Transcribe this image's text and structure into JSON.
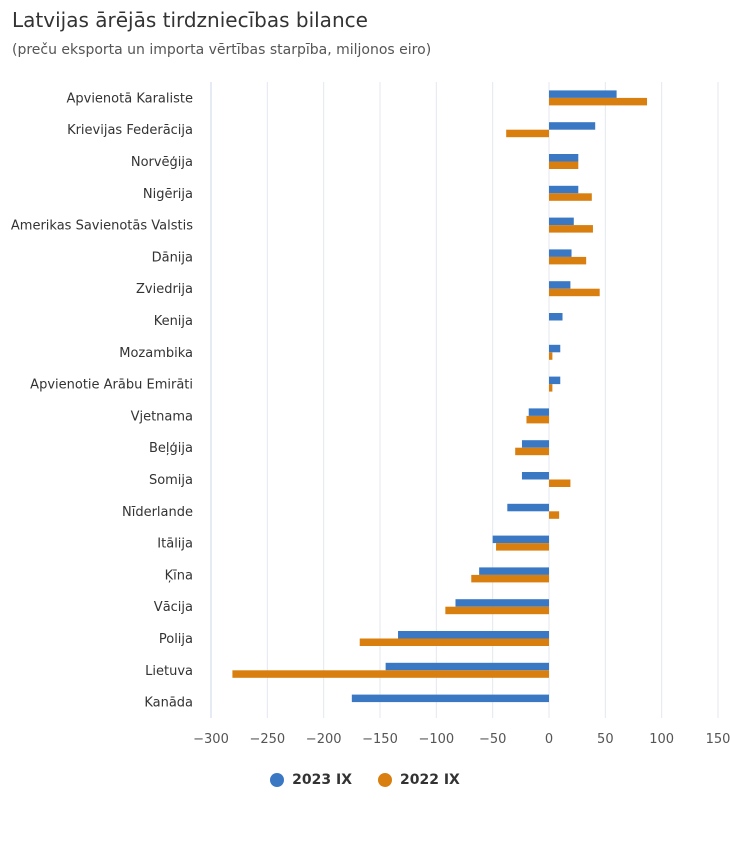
{
  "chart_data": {
    "type": "bar",
    "orientation": "horizontal",
    "title": "Latvijas ārējās tirdzniecības bilance",
    "subtitle": "(preču eksporta un importa vērtības starpība, miljonos eiro)",
    "categories": [
      "Apvienotā Karaliste",
      "Krievijas Federācija",
      "Norvēģija",
      "Nigērija",
      "Amerikas Savienotās Valstis",
      "Dānija",
      "Zviedrija",
      "Kenija",
      "Mozambika",
      "Apvienotie Arābu Emirāti",
      "Vjetnama",
      "Beļģija",
      "Somija",
      "Nīderlande",
      "Itālija",
      "Ķīna",
      "Vācija",
      "Polija",
      "Lietuva",
      "Kanāda"
    ],
    "series": [
      {
        "name": "2023 IX",
        "color": "#3a78c4",
        "values": [
          60,
          41,
          26,
          26,
          22,
          20,
          19,
          12,
          10,
          10,
          -18,
          -24,
          -24,
          -37,
          -50,
          -62,
          -83,
          -134,
          -145,
          -175
        ]
      },
      {
        "name": "2022 IX",
        "color": "#d97f0f",
        "values": [
          87,
          -38,
          26,
          38,
          39,
          33,
          45,
          0,
          3,
          3,
          -20,
          -30,
          19,
          9,
          -47,
          -69,
          -92,
          -168,
          -281,
          0
        ]
      }
    ],
    "x_ticks": [
      "−300",
      "−250",
      "−200",
      "−150",
      "−100",
      "−50",
      "0",
      "50",
      "100",
      "150"
    ],
    "xlim": [
      -300,
      150
    ],
    "xlabel": "",
    "ylabel": "",
    "grid": "vertical",
    "legend_position": "bottom"
  }
}
